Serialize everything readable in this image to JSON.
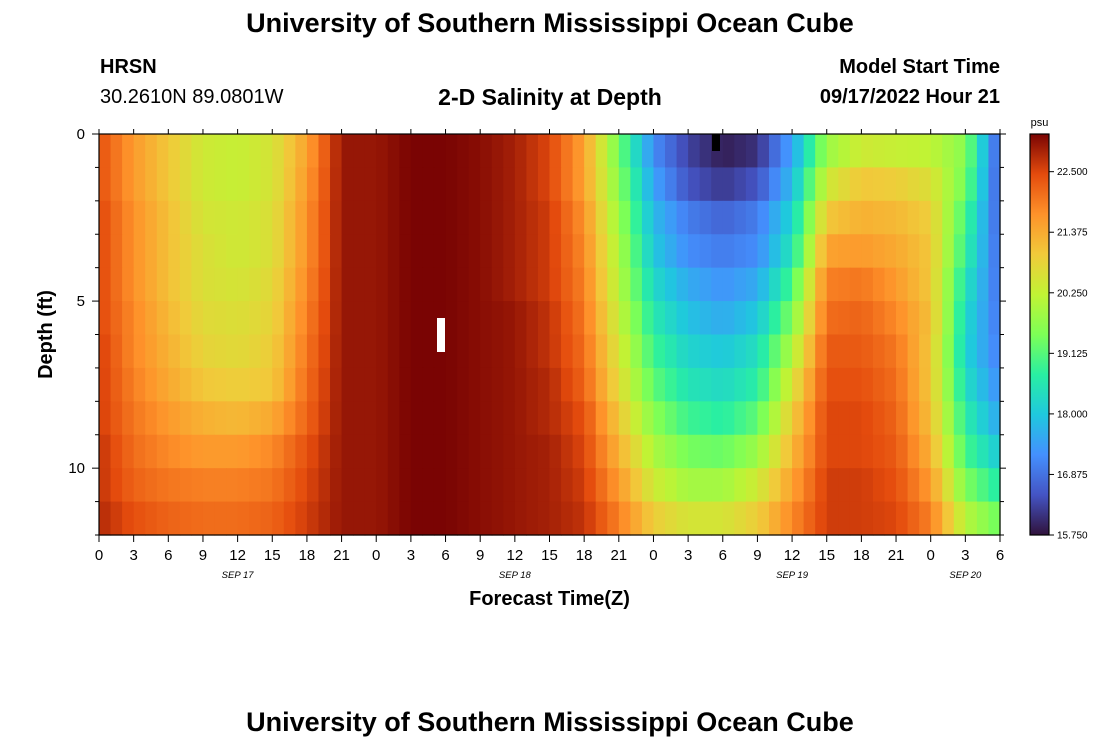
{
  "page": {
    "title": "University of Southern Mississippi Ocean Cube",
    "footer_title": "University of Southern Mississippi Ocean Cube",
    "station": "HRSN",
    "coords": "30.2610N  89.0801W",
    "subtitle": "2-D Salinity at Depth",
    "model_start_label": "Model Start Time",
    "model_start_value": "09/17/2022 Hour 21"
  },
  "chart_data": {
    "type": "heatmap",
    "title": "2-D Salinity at Depth",
    "xlabel": "Forecast Time(Z)",
    "ylabel": "Depth (ft)",
    "colorbar_unit": "psu",
    "colorbar_range": [
      15.75,
      23.2
    ],
    "colorbar_ticks": [
      "15.750",
      "16.875",
      "18.000",
      "19.125",
      "20.250",
      "21.375",
      "22.500"
    ],
    "colorbar_values": [
      15.75,
      16.875,
      18.0,
      19.125,
      20.25,
      21.375,
      22.5
    ],
    "x_range_hours": [
      0,
      78
    ],
    "x_tick_labels": [
      "0",
      "3",
      "6",
      "9",
      "12",
      "15",
      "18",
      "21",
      "0",
      "3",
      "6",
      "9",
      "12",
      "15",
      "18",
      "21",
      "0",
      "3",
      "6",
      "9",
      "12",
      "15",
      "18",
      "21",
      "0",
      "3",
      "6"
    ],
    "date_labels": [
      {
        "label": "SEP 17",
        "hour": 12
      },
      {
        "label": "SEP 18",
        "hour": 36
      },
      {
        "label": "SEP 19",
        "hour": 60
      },
      {
        "label": "SEP 20",
        "hour": 75
      }
    ],
    "y_range_ft": [
      0,
      12
    ],
    "y_tick_labels": [
      "0",
      "5",
      "10"
    ],
    "y_tick_values": [
      0,
      5,
      10
    ],
    "depth_levels_ft": [
      0.5,
      1.5,
      2.5,
      3.5,
      4.5,
      5.5,
      6.5,
      7.5,
      8.5,
      9.5,
      10.5,
      11.5
    ],
    "time_knots_hours": [
      0,
      3,
      6,
      9,
      12,
      15,
      18,
      21,
      24,
      27,
      30,
      33,
      36,
      39,
      42,
      45,
      48,
      51,
      54,
      57,
      60,
      63,
      66,
      69,
      72,
      75,
      78
    ],
    "salinity_psu": [
      [
        22.4,
        21.6,
        21.0,
        20.4,
        20.3,
        20.5,
        21.5,
        23.0,
        23.0,
        23.2,
        23.2,
        23.1,
        22.9,
        22.5,
        21.5,
        19.4,
        17.2,
        16.3,
        15.9,
        16.1,
        17.5,
        19.8,
        20.4,
        20.3,
        20.2,
        19.6,
        16.5
      ],
      [
        22.4,
        21.6,
        21.0,
        20.4,
        20.3,
        20.5,
        21.6,
        23.0,
        23.0,
        23.2,
        23.2,
        23.1,
        22.9,
        22.5,
        21.5,
        19.6,
        17.5,
        16.5,
        16.2,
        16.5,
        17.8,
        20.4,
        21.0,
        20.9,
        20.6,
        19.4,
        16.5
      ],
      [
        22.5,
        21.7,
        21.1,
        20.5,
        20.4,
        20.6,
        21.7,
        23.0,
        23.0,
        23.2,
        23.2,
        23.1,
        22.9,
        22.6,
        21.7,
        19.8,
        17.8,
        17.0,
        16.7,
        17.0,
        18.2,
        21.0,
        21.3,
        21.2,
        20.9,
        19.0,
        16.6
      ],
      [
        22.5,
        21.7,
        21.1,
        20.6,
        20.4,
        20.6,
        21.7,
        23.0,
        23.0,
        23.2,
        23.2,
        23.1,
        22.9,
        22.6,
        21.8,
        20.0,
        18.0,
        17.2,
        17.0,
        17.2,
        18.5,
        21.5,
        21.6,
        21.4,
        21.0,
        18.8,
        16.7
      ],
      [
        22.5,
        21.7,
        21.1,
        20.6,
        20.5,
        20.7,
        21.8,
        23.0,
        23.0,
        23.2,
        23.2,
        23.1,
        22.9,
        22.6,
        21.9,
        20.1,
        18.3,
        17.6,
        17.3,
        17.6,
        19.0,
        21.9,
        22.0,
        21.6,
        21.0,
        18.5,
        16.8
      ],
      [
        22.5,
        21.8,
        21.2,
        20.7,
        20.6,
        20.8,
        21.9,
        23.0,
        23.0,
        23.2,
        23.2,
        23.1,
        23.0,
        22.7,
        22.0,
        20.3,
        18.6,
        17.9,
        17.6,
        18.0,
        19.5,
        22.1,
        22.2,
        21.8,
        21.1,
        18.3,
        16.9
      ],
      [
        22.6,
        21.8,
        21.3,
        20.8,
        20.7,
        20.9,
        22.0,
        23.0,
        23.0,
        23.2,
        23.2,
        23.1,
        23.0,
        22.7,
        22.1,
        20.5,
        18.9,
        18.2,
        18.0,
        18.4,
        20.0,
        22.3,
        22.3,
        22.0,
        21.0,
        18.2,
        17.0
      ],
      [
        22.6,
        21.9,
        21.4,
        21.0,
        20.9,
        21.0,
        22.1,
        23.0,
        23.0,
        23.2,
        23.2,
        23.1,
        23.0,
        22.8,
        22.2,
        20.7,
        19.2,
        18.5,
        18.3,
        18.7,
        20.5,
        22.4,
        22.4,
        22.1,
        21.0,
        18.4,
        17.2
      ],
      [
        22.6,
        22.0,
        21.6,
        21.3,
        21.2,
        21.4,
        22.2,
        23.0,
        23.0,
        23.2,
        23.2,
        23.1,
        23.0,
        22.8,
        22.4,
        21.0,
        19.6,
        18.9,
        18.7,
        19.2,
        20.9,
        22.5,
        22.5,
        22.2,
        21.1,
        18.7,
        17.5
      ],
      [
        22.7,
        22.1,
        21.8,
        21.6,
        21.6,
        21.8,
        22.4,
        23.0,
        23.0,
        23.2,
        23.2,
        23.1,
        23.0,
        22.9,
        22.5,
        21.3,
        20.0,
        19.4,
        19.3,
        19.8,
        21.2,
        22.5,
        22.5,
        22.3,
        21.3,
        19.0,
        18.0
      ],
      [
        22.7,
        22.2,
        22.0,
        21.9,
        21.9,
        22.0,
        22.5,
        23.0,
        23.0,
        23.2,
        23.2,
        23.1,
        23.0,
        22.9,
        22.6,
        21.6,
        20.4,
        19.9,
        19.9,
        20.4,
        21.5,
        22.6,
        22.6,
        22.4,
        21.6,
        19.5,
        18.6
      ],
      [
        22.8,
        22.4,
        22.2,
        22.1,
        22.1,
        22.2,
        22.6,
        23.0,
        23.0,
        23.2,
        23.2,
        23.1,
        23.0,
        22.9,
        22.7,
        21.9,
        20.9,
        20.5,
        20.5,
        20.9,
        21.8,
        22.6,
        22.6,
        22.5,
        21.9,
        20.1,
        19.3
      ]
    ],
    "grid": false,
    "legend": "right"
  }
}
